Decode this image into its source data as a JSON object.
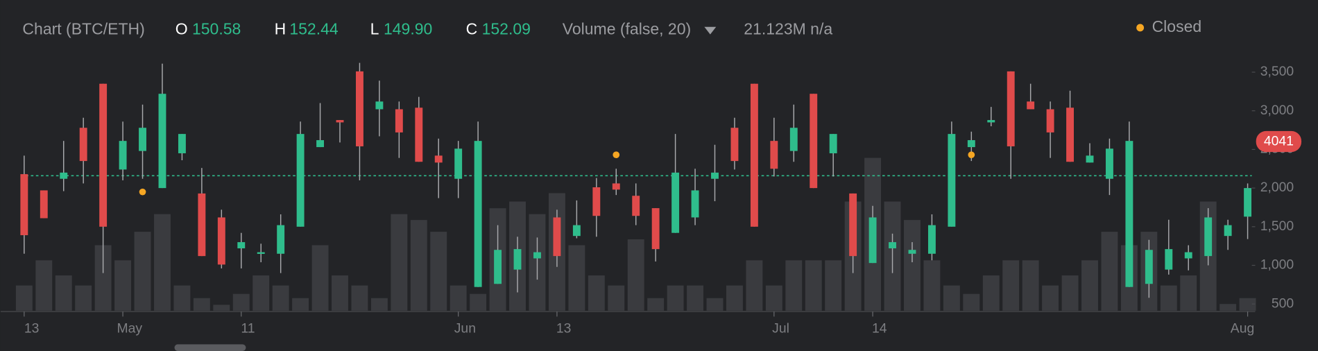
{
  "chart_data": {
    "type": "candlestick",
    "title": "Chart (BTC/ETH)",
    "ohlc_legend": [
      {
        "key": "O",
        "value": "150.58"
      },
      {
        "key": "H",
        "value": "152.44"
      },
      {
        "key": "L",
        "value": "149.90"
      },
      {
        "key": "C",
        "value": "152.09"
      }
    ],
    "indicator": "Volume (false, 20)",
    "indicator_value": "21.123M n/a",
    "price_label": "4041",
    "up_color": "#2fbd8c",
    "down_color": "#e04b4b",
    "volume_color": "#3a3b3f",
    "reference_line": 2160,
    "reference_color": "#2fbd8c",
    "xlim": [
      0,
      62
    ],
    "xticks": [
      {
        "value": 0,
        "label": "13"
      },
      {
        "value": 5,
        "label": "May"
      },
      {
        "value": 11,
        "label": "11"
      },
      {
        "value": 22,
        "label": "Jun"
      },
      {
        "value": 27,
        "label": "13"
      },
      {
        "value": 38,
        "label": "Jul"
      },
      {
        "value": 43,
        "label": "14"
      },
      {
        "value": 62,
        "label": "Aug"
      }
    ],
    "ylim": [
      413,
      3673
    ],
    "yticks": [
      {
        "value": 500,
        "label": "500"
      },
      {
        "value": 1000,
        "label": "1,000"
      },
      {
        "value": 1500,
        "label": "1,500"
      },
      {
        "value": 2000,
        "label": "2,000"
      },
      {
        "value": 2500,
        "label": "2,500"
      },
      {
        "value": 3000,
        "label": "3,000"
      },
      {
        "value": 3500,
        "label": "3,500"
      }
    ],
    "volume_ylim": [
      0,
      3000
    ],
    "open": [
      2180,
      1970,
      2120,
      2780,
      3350,
      2240,
      2480,
      2000,
      2450,
      1930,
      1620,
      1220,
      1150,
      1150,
      1500,
      2530,
      2880,
      3510,
      3020,
      3020,
      3040,
      2420,
      2120,
      720,
      760,
      945,
      1090,
      1620,
      1380,
      2010,
      2060,
      1900,
      1740,
      1420,
      1620,
      2120,
      2780,
      3350,
      2610,
      2480,
      3220,
      2450,
      1930,
      1030,
      1220,
      1150,
      1150,
      1500,
      2530,
      2850,
      3510,
      3120,
      3020,
      3040,
      2330,
      2120,
      720,
      760,
      945,
      1090,
      1120,
      1380,
      1630
    ],
    "high": [
      2420,
      1970,
      2610,
      2910,
      3350,
      2860,
      3080,
      3610,
      2700,
      2260,
      1720,
      1420,
      1280,
      1660,
      2860,
      3100,
      2880,
      3620,
      3390,
      3120,
      3180,
      2640,
      2610,
      2860,
      1520,
      1370,
      1360,
      1720,
      1840,
      2130,
      2250,
      2060,
      1740,
      2700,
      2250,
      2560,
      2910,
      3350,
      2910,
      3080,
      3220,
      2700,
      1930,
      1770,
      1410,
      1300,
      1660,
      2860,
      2730,
      3050,
      3510,
      3350,
      3120,
      3260,
      2580,
      2640,
      2860,
      1330,
      1590,
      1260,
      1740,
      1590,
      2060
    ],
    "low": [
      1150,
      1610,
      1960,
      2060,
      900,
      2100,
      2120,
      2000,
      2360,
      1120,
      960,
      960,
      1040,
      900,
      1500,
      2530,
      2590,
      2100,
      2670,
      2390,
      2340,
      1870,
      1870,
      720,
      760,
      650,
      815,
      980,
      1350,
      1370,
      1910,
      1520,
      1050,
      1420,
      1520,
      1830,
      2240,
      1500,
      2150,
      2340,
      2000,
      2150,
      900,
      1030,
      900,
      1040,
      1065,
      1500,
      2350,
      2800,
      2120,
      3020,
      2390,
      2340,
      2330,
      1910,
      720,
      580,
      880,
      935,
      1000,
      1200,
      1340
    ],
    "close": [
      1390,
      1610,
      2200,
      2350,
      1500,
      2610,
      2780,
      3220,
      2700,
      1120,
      1010,
      1300,
      1170,
      1520,
      2700,
      2620,
      2850,
      2540,
      3120,
      2720,
      2340,
      2330,
      2510,
      2610,
      1200,
      1210,
      1170,
      1120,
      1520,
      1640,
      1980,
      1640,
      1210,
      2200,
      1970,
      2200,
      2350,
      1500,
      2250,
      2780,
      2000,
      2700,
      1120,
      1620,
      1300,
      1200,
      1520,
      2700,
      2620,
      2880,
      2540,
      3020,
      2720,
      2340,
      2420,
      2510,
      2610,
      1200,
      1210,
      1170,
      1620,
      1520,
      2000
    ],
    "volume": [
      300,
      600,
      420,
      300,
      780,
      600,
      940,
      1150,
      300,
      150,
      70,
      200,
      420,
      300,
      150,
      780,
      420,
      300,
      150,
      1150,
      1080,
      940,
      300,
      200,
      1220,
      1300,
      1150,
      1400,
      780,
      420,
      300,
      850,
      150,
      300,
      300,
      150,
      300,
      600,
      300,
      600,
      600,
      600,
      1300,
      1820,
      1300,
      1080,
      600,
      300,
      200,
      420,
      600,
      600,
      300,
      420,
      600,
      940,
      780,
      940,
      300,
      420,
      1300,
      80,
      150
    ],
    "series": [
      {
        "name": "Closed",
        "color": "#f5a623",
        "values": [
          null,
          null,
          null,
          null,
          null,
          null,
          1950,
          null,
          null,
          null,
          null,
          null,
          null,
          null,
          null,
          null,
          null,
          null,
          null,
          null,
          null,
          null,
          null,
          null,
          null,
          null,
          null,
          null,
          null,
          null,
          2430,
          null,
          null,
          null,
          null,
          null,
          null,
          null,
          null,
          null,
          null,
          null,
          null,
          null,
          null,
          null,
          null,
          null,
          2430,
          null,
          null,
          null,
          null,
          null,
          null,
          null,
          null,
          null,
          null,
          null,
          null,
          null,
          null
        ]
      }
    ]
  }
}
